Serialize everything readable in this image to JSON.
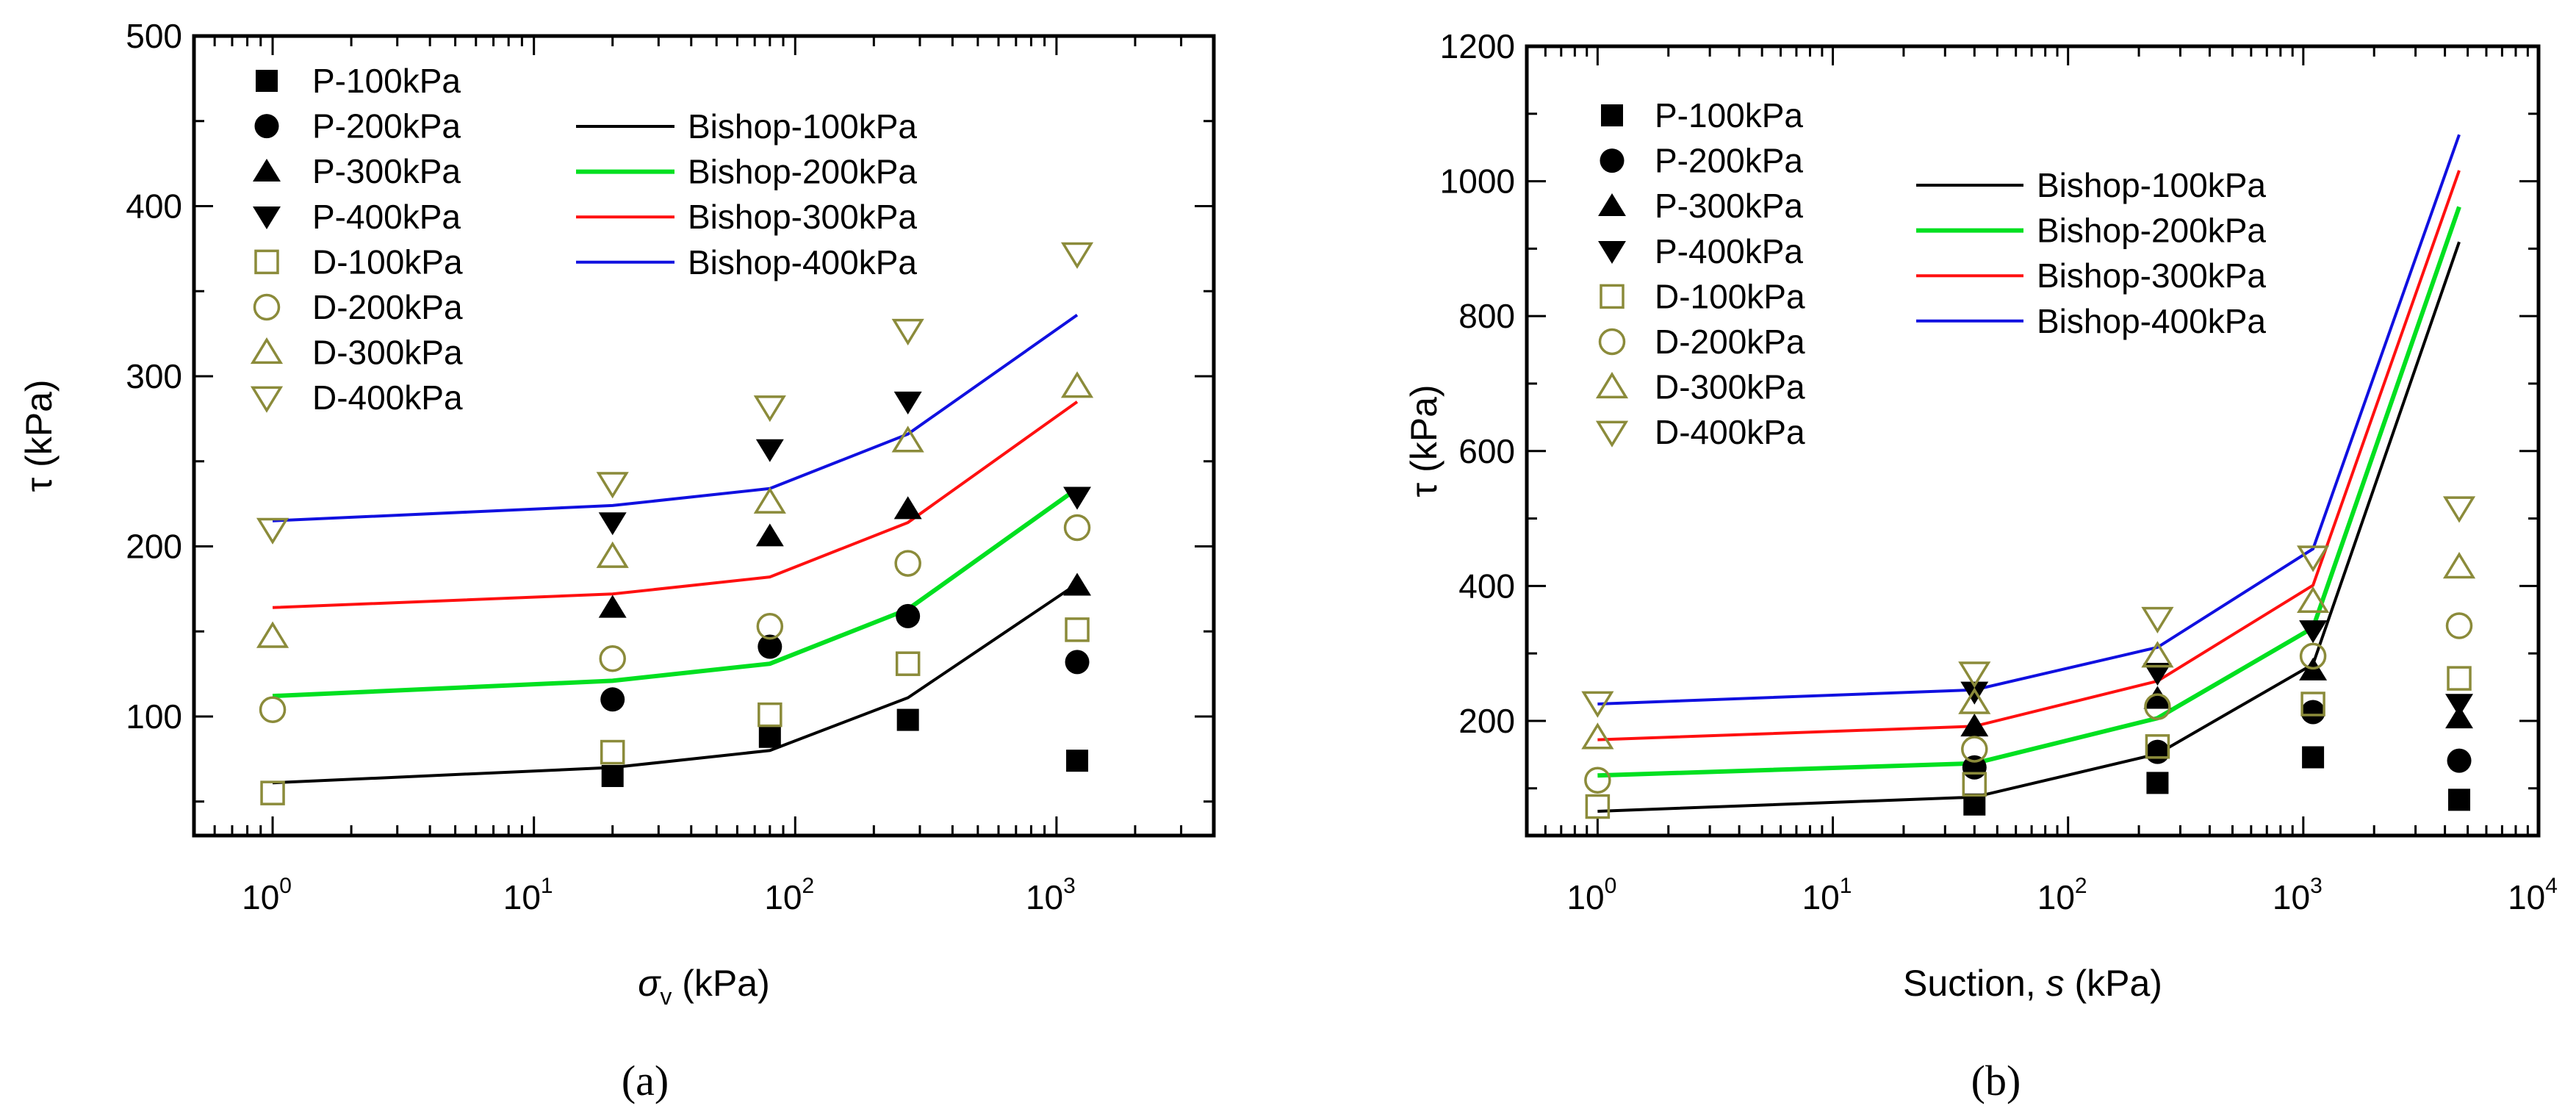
{
  "colors": {
    "black": "#000000",
    "green": "#00e020",
    "red": "#ff1010",
    "blue": "#1010e0",
    "olive": "#8b8b3a"
  },
  "chart_data": [
    {
      "type": "scatter",
      "caption": "(a)",
      "xlabel_symbol": "σ",
      "xlabel_sub": "v",
      "xlabel_rest": " (kPa)",
      "ylabel": "τ (kPa)",
      "xscale": "log",
      "xlim": [
        0.5,
        4000
      ],
      "ylim": [
        30,
        500
      ],
      "xticks": [
        1,
        10,
        100,
        1000
      ],
      "xtick_labels": [
        [
          "10",
          "0"
        ],
        [
          "10",
          "1"
        ],
        [
          "10",
          "2"
        ],
        [
          "10",
          "3"
        ]
      ],
      "yticks": [
        100,
        200,
        300,
        400,
        500
      ],
      "ytick_labels": [
        "100",
        "200",
        "300",
        "400",
        "500"
      ],
      "legend_placement": "top-left",
      "points": [
        {
          "name": "P-100kPa",
          "marker": "square-filled",
          "color": "#000000",
          "x": [
            20,
            80,
            270,
            1200
          ],
          "y": [
            65,
            88,
            98,
            74
          ]
        },
        {
          "name": "P-200kPa",
          "marker": "circle-filled",
          "color": "#000000",
          "x": [
            20,
            80,
            270,
            1200
          ],
          "y": [
            110,
            141,
            159,
            132
          ]
        },
        {
          "name": "P-300kPa",
          "marker": "triangle-up-filled",
          "color": "#000000",
          "x": [
            20,
            80,
            270,
            1200
          ],
          "y": [
            164,
            206,
            222,
            177
          ]
        },
        {
          "name": "P-400kPa",
          "marker": "triangle-down-filled",
          "color": "#000000",
          "x": [
            20,
            80,
            270,
            1200
          ],
          "y": [
            214,
            257,
            285,
            229
          ]
        },
        {
          "name": "D-100kPa",
          "marker": "square-open",
          "color": "#8b8b3a",
          "x": [
            1,
            20,
            80,
            270,
            1200
          ],
          "y": [
            55,
            79,
            101,
            131,
            151
          ]
        },
        {
          "name": "D-200kPa",
          "marker": "circle-open",
          "color": "#8b8b3a",
          "x": [
            1,
            20,
            80,
            270,
            1200
          ],
          "y": [
            104,
            134,
            153,
            190,
            211
          ]
        },
        {
          "name": "D-300kPa",
          "marker": "triangle-up-open",
          "color": "#8b8b3a",
          "x": [
            1,
            20,
            80,
            270,
            1200
          ],
          "y": [
            147,
            194,
            226,
            262,
            294
          ]
        },
        {
          "name": "D-400kPa",
          "marker": "triangle-down-open",
          "color": "#8b8b3a",
          "x": [
            1,
            20,
            80,
            270,
            1200
          ],
          "y": [
            210,
            237,
            282,
            327,
            372
          ]
        }
      ],
      "lines": [
        {
          "name": "Bishop-100kPa",
          "color": "#000000",
          "x": [
            1,
            20,
            80,
            270,
            1200
          ],
          "y": [
            61,
            70,
            80,
            111,
            178
          ]
        },
        {
          "name": "Bishop-200kPa",
          "color": "#00e020",
          "x": [
            1,
            20,
            80,
            270,
            1200
          ],
          "y": [
            112,
            121,
            131,
            163,
            234
          ]
        },
        {
          "name": "Bishop-300kPa",
          "color": "#ff1010",
          "x": [
            1,
            20,
            80,
            270,
            1200
          ],
          "y": [
            164,
            172,
            182,
            214,
            285
          ]
        },
        {
          "name": "Bishop-400kPa",
          "color": "#1010e0",
          "x": [
            1,
            20,
            80,
            270,
            1200
          ],
          "y": [
            215,
            224,
            234,
            266,
            336
          ]
        }
      ]
    },
    {
      "type": "scatter",
      "caption": "(b)",
      "xlabel_symbol": "Suction, ",
      "xlabel_sub": "s",
      "xlabel_rest": " (kPa)",
      "ylabel": "τ (kPa)",
      "xscale": "log",
      "xlim": [
        0.5,
        10000
      ],
      "ylim": [
        30,
        1200
      ],
      "xticks": [
        1,
        10,
        100,
        1000,
        10000
      ],
      "xtick_labels": [
        [
          "10",
          "0"
        ],
        [
          "10",
          "1"
        ],
        [
          "10",
          "2"
        ],
        [
          "10",
          "3"
        ],
        [
          "10",
          "4"
        ]
      ],
      "yticks": [
        200,
        400,
        600,
        800,
        1000,
        1200
      ],
      "ytick_labels": [
        "200",
        "400",
        "600",
        "800",
        "1000",
        "1200"
      ],
      "legend_placement": "top-left",
      "points": [
        {
          "name": "P-100kPa",
          "marker": "square-filled",
          "color": "#000000",
          "x": [
            40,
            240,
            1100,
            4600
          ],
          "y": [
            76,
            108,
            146,
            83
          ]
        },
        {
          "name": "P-200kPa",
          "marker": "circle-filled",
          "color": "#000000",
          "x": [
            40,
            240,
            1100,
            4600
          ],
          "y": [
            131,
            154,
            213,
            141
          ]
        },
        {
          "name": "P-300kPa",
          "marker": "triangle-up-filled",
          "color": "#000000",
          "x": [
            40,
            240,
            1100,
            4600
          ],
          "y": [
            192,
            233,
            275,
            204
          ]
        },
        {
          "name": "P-400kPa",
          "marker": "triangle-down-filled",
          "color": "#000000",
          "x": [
            40,
            240,
            1100,
            4600
          ],
          "y": [
            243,
            271,
            334,
            225
          ]
        },
        {
          "name": "D-100kPa",
          "marker": "square-open",
          "color": "#8b8b3a",
          "x": [
            1,
            40,
            240,
            1100,
            4600
          ],
          "y": [
            73,
            106,
            162,
            225,
            263
          ]
        },
        {
          "name": "D-200kPa",
          "marker": "circle-open",
          "color": "#8b8b3a",
          "x": [
            1,
            40,
            240,
            1100,
            4600
          ],
          "y": [
            112,
            158,
            221,
            296,
            341
          ]
        },
        {
          "name": "D-300kPa",
          "marker": "triangle-up-open",
          "color": "#8b8b3a",
          "x": [
            1,
            40,
            240,
            1100,
            4600
          ],
          "y": [
            175,
            227,
            296,
            377,
            428
          ]
        },
        {
          "name": "D-400kPa",
          "marker": "triangle-down-open",
          "color": "#8b8b3a",
          "x": [
            1,
            40,
            240,
            1100,
            4600
          ],
          "y": [
            227,
            271,
            352,
            443,
            516
          ]
        }
      ],
      "lines": [
        {
          "name": "Bishop-100kPa",
          "color": "#000000",
          "x": [
            1,
            40,
            240,
            1100,
            4600
          ],
          "y": [
            66,
            87,
            151,
            284,
            910
          ]
        },
        {
          "name": "Bishop-200kPa",
          "color": "#00e020",
          "x": [
            1,
            40,
            240,
            1100,
            4600
          ],
          "y": [
            119,
            137,
            204,
            338,
            962
          ]
        },
        {
          "name": "Bishop-300kPa",
          "color": "#ff1010",
          "x": [
            1,
            40,
            240,
            1100,
            4600
          ],
          "y": [
            172,
            192,
            259,
            401,
            1016
          ]
        },
        {
          "name": "Bishop-400kPa",
          "color": "#1010e0",
          "x": [
            1,
            40,
            240,
            1100,
            4600
          ],
          "y": [
            225,
            246,
            309,
            455,
            1069
          ]
        }
      ]
    }
  ]
}
